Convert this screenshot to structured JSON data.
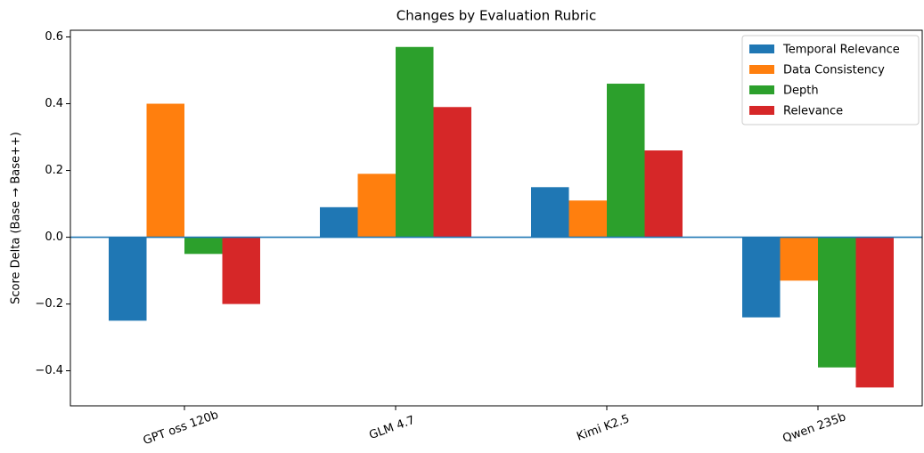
{
  "chart_data": {
    "type": "bar",
    "title": "Changes by Evaluation Rubric",
    "ylabel": "Score Delta (Base → Base++)",
    "categories": [
      "GPT oss 120b",
      "GLM 4.7",
      "Kimi K2.5",
      "Qwen 235b"
    ],
    "series": [
      {
        "name": "Temporal Relevance",
        "color": "#1f77b4",
        "values": [
          -0.25,
          0.09,
          0.15,
          -0.24
        ]
      },
      {
        "name": "Data Consistency",
        "color": "#ff7f0e",
        "values": [
          0.4,
          0.19,
          0.11,
          -0.13
        ]
      },
      {
        "name": "Depth",
        "color": "#2ca02c",
        "values": [
          -0.05,
          0.57,
          0.46,
          -0.39
        ]
      },
      {
        "name": "Relevance",
        "color": "#d62728",
        "values": [
          -0.2,
          0.39,
          0.26,
          -0.45
        ]
      }
    ],
    "ylim": [
      -0.505,
      0.62
    ],
    "yticks": [
      {
        "value": -0.4,
        "label": "−0.4"
      },
      {
        "value": -0.2,
        "label": "−0.2"
      },
      {
        "value": 0,
        "label": "0.0"
      },
      0.2,
      0.4,
      0.6
    ],
    "zero_line_color": "#1f77b4",
    "legend": "upper right"
  }
}
